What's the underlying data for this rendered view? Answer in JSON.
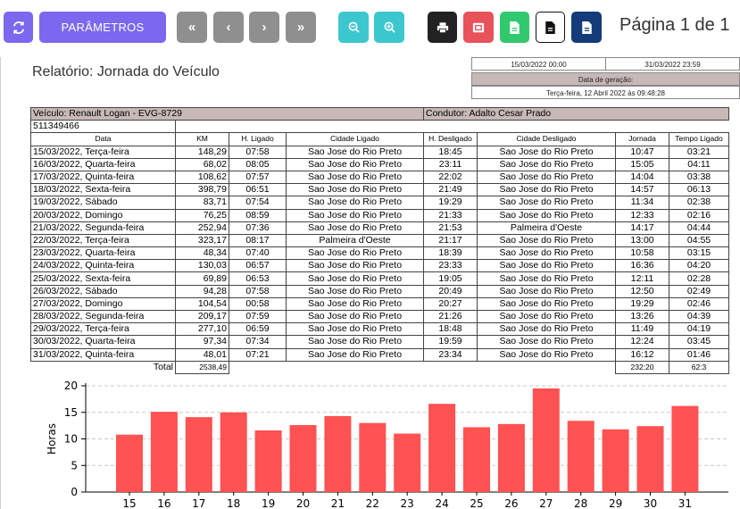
{
  "toolbar": {
    "params_label": "PARÂMETROS",
    "page_label": "Página 1 de 1"
  },
  "report": {
    "title": "Relatório: Jornada do Veículo",
    "period_start": "15/03/2022 00:00",
    "period_end": "31/03/2022 23:59",
    "generated_label": "Data de geração:",
    "generated_value": "Terça-feira, 12 Abril 2022 às 09:48:28",
    "vehicle": "Veículo:  Renault Logan - EVG-8729",
    "driver": "Condutor: Adalto Cesar Prado",
    "vehicle_id": "511349466",
    "columns": [
      "Data",
      "KM",
      "H. Ligado",
      "Cidade Ligado",
      "H. Desligado",
      "Cidade Desligado",
      "Jornada",
      "Tempo Ligado"
    ],
    "rows": [
      [
        "15/03/2022, Terça-feira",
        "148,29",
        "07:58",
        "Sao Jose do Rio Preto",
        "18:45",
        "Sao Jose do Rio Preto",
        "10:47",
        "03:21"
      ],
      [
        "16/03/2022, Quarta-feira",
        "68,02",
        "08:05",
        "Sao Jose do Rio Preto",
        "23:11",
        "Sao Jose do Rio Preto",
        "15:05",
        "04:11"
      ],
      [
        "17/03/2022, Quinta-feira",
        "108,62",
        "07:57",
        "Sao Jose do Rio Preto",
        "22:02",
        "Sao Jose do Rio Preto",
        "14:04",
        "03:38"
      ],
      [
        "18/03/2022, Sexta-feira",
        "398,79",
        "06:51",
        "Sao Jose do Rio Preto",
        "21:49",
        "Sao Jose do Rio Preto",
        "14:57",
        "06:13"
      ],
      [
        "19/03/2022, Sábado",
        "83,71",
        "07:54",
        "Sao Jose do Rio Preto",
        "19:29",
        "Sao Jose do Rio Preto",
        "11:34",
        "02:38"
      ],
      [
        "20/03/2022, Domingo",
        "76,25",
        "08:59",
        "Sao Jose do Rio Preto",
        "21:33",
        "Sao Jose do Rio Preto",
        "12:33",
        "02:16"
      ],
      [
        "21/03/2022, Segunda-feira",
        "252,94",
        "07:36",
        "Sao Jose do Rio Preto",
        "21:53",
        "Palmeira d'Oeste",
        "14:17",
        "04:44"
      ],
      [
        "22/03/2022, Terça-feira",
        "323,17",
        "08:17",
        "Palmeira d'Oeste",
        "21:17",
        "Sao Jose do Rio Preto",
        "13:00",
        "04:55"
      ],
      [
        "23/03/2022, Quarta-feira",
        "48,34",
        "07:40",
        "Sao Jose do Rio Preto",
        "18:39",
        "Sao Jose do Rio Preto",
        "10:58",
        "03:15"
      ],
      [
        "24/03/2022, Quinta-feira",
        "130,03",
        "06:57",
        "Sao Jose do Rio Preto",
        "23:33",
        "Sao Jose do Rio Preto",
        "16:36",
        "04:20"
      ],
      [
        "25/03/2022, Sexta-feira",
        "69,89",
        "06:53",
        "Sao Jose do Rio Preto",
        "19:05",
        "Sao Jose do Rio Preto",
        "12:11",
        "02:28"
      ],
      [
        "26/03/2022, Sábado",
        "94,28",
        "07:58",
        "Sao Jose do Rio Preto",
        "20:49",
        "Sao Jose do Rio Preto",
        "12:50",
        "02:49"
      ],
      [
        "27/03/2022, Domingo",
        "104,54",
        "00:58",
        "Sao Jose do Rio Preto",
        "20:27",
        "Sao Jose do Rio Preto",
        "19:29",
        "02:46"
      ],
      [
        "28/03/2022, Segunda-feira",
        "209,17",
        "07:59",
        "Sao Jose do Rio Preto",
        "21:26",
        "Sao Jose do Rio Preto",
        "13:26",
        "04:39"
      ],
      [
        "29/03/2022, Terça-feira",
        "277,10",
        "06:59",
        "Sao Jose do Rio Preto",
        "18:48",
        "Sao Jose do Rio Preto",
        "11:49",
        "04:19"
      ],
      [
        "30/03/2022, Quarta-feira",
        "97,34",
        "07:34",
        "Sao Jose do Rio Preto",
        "19:59",
        "Sao Jose do Rio Preto",
        "12:24",
        "03:45"
      ],
      [
        "31/03/2022, Quinta-feira",
        "48,01",
        "07:21",
        "Sao Jose do Rio Preto",
        "23:34",
        "Sao Jose do Rio Preto",
        "16:12",
        "01:46"
      ]
    ],
    "total_label": "Total",
    "total_km": "2538,49",
    "total_jornada": "232:20",
    "total_tempo": "62:3"
  },
  "chart_data": {
    "type": "bar",
    "categories": [
      "15",
      "16",
      "17",
      "18",
      "19",
      "20",
      "21",
      "22",
      "23",
      "24",
      "25",
      "26",
      "27",
      "28",
      "29",
      "30",
      "31"
    ],
    "values": [
      10.8,
      15.1,
      14.1,
      15.0,
      11.6,
      12.6,
      14.3,
      13.0,
      11.0,
      16.6,
      12.2,
      12.8,
      19.5,
      13.4,
      11.8,
      12.4,
      16.2
    ],
    "ylabel": "Horas",
    "yticks": [
      0,
      5,
      10,
      15,
      20
    ],
    "ylim": [
      0,
      20
    ],
    "bar_color": "#ff5252",
    "grid": true
  }
}
